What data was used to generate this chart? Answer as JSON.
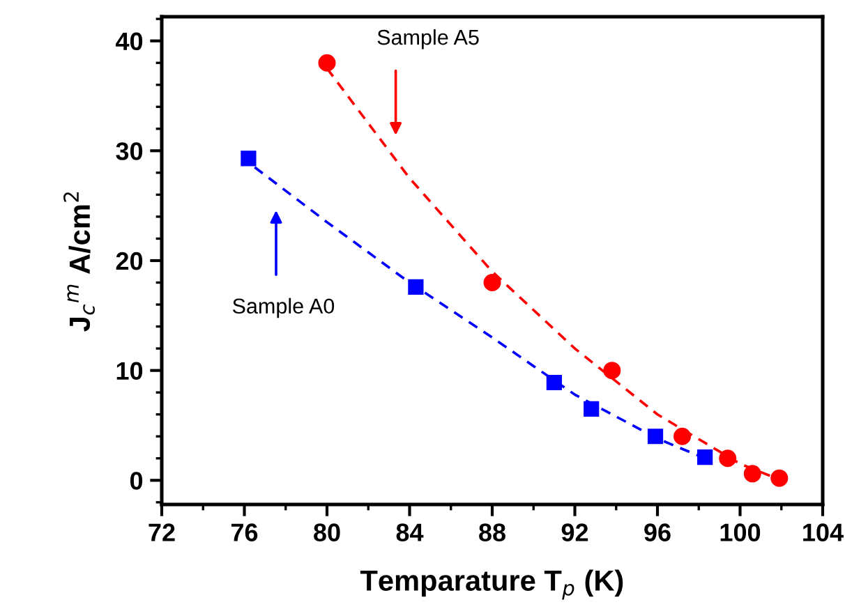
{
  "chart_data": {
    "type": "scatter",
    "xlabel": "Temparature T$_{p}$ (K)",
    "ylabel": "J$_{c}$$^{m}$ A/cm$^{2}$",
    "xlim": [
      72,
      104
    ],
    "xticks": [
      72,
      76,
      80,
      84,
      88,
      92,
      96,
      100,
      104
    ],
    "ylim": [
      -2.2,
      42.2
    ],
    "yticks": [
      0,
      10,
      20,
      30,
      40
    ],
    "grid": false,
    "legend": false,
    "series": [
      {
        "type": "line",
        "color": "#ff0000",
        "line_style": "dashed",
        "marker": "none",
        "x": [
          80,
          84,
          88,
          92,
          96,
          100,
          102
        ],
        "values": [
          37.5,
          27.5,
          19,
          12,
          6,
          1.5,
          0
        ]
      },
      {
        "type": "line",
        "color": "#0000ff",
        "line_style": "dashed",
        "marker": "none",
        "x": [
          76.5,
          80,
          84,
          88,
          92,
          96,
          98.3
        ],
        "values": [
          28.5,
          23.5,
          18,
          13,
          7.8,
          3.8,
          2
        ]
      },
      {
        "color": "#0000ff",
        "marker": "square",
        "x": [
          76.2,
          84.3,
          91.0,
          92.8,
          95.9,
          98.3
        ],
        "values": [
          29.3,
          17.6,
          8.9,
          6.5,
          4.0,
          2.1
        ]
      },
      {
        "color": "#ff0000",
        "marker": "circle",
        "x": [
          80,
          88,
          93.8,
          97.2,
          99.4,
          100.6,
          101.9
        ],
        "values": [
          38,
          18,
          10,
          4,
          2,
          0.6,
          0.2
        ]
      }
    ],
    "annotations": [
      "Sample A5",
      "Sample A0"
    ]
  }
}
